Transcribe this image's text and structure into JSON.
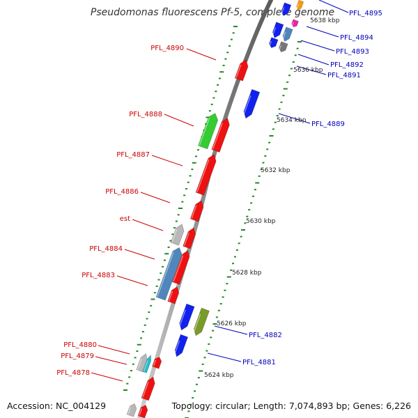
{
  "title": "Pseudomonas fluorescens Pf-5, complete genome",
  "accession": "Accession: NC_004129",
  "summary": "Topology: circular; Length: 7,074,893 bp; Genes: 6,226",
  "colors": {
    "red": "#ee1111",
    "blue": "#1122ee",
    "green": "#33cc33",
    "olive": "#7a9a2a",
    "steel": "#4f86bc",
    "gray": "#b8b8b8",
    "darkgray": "#777777",
    "cyan": "#22bbcc",
    "magenta": "#ee22aa",
    "orange": "#ff9900",
    "label_red": "#cc0000",
    "label_blue": "#0000bb",
    "tick": "#228822",
    "backbone": "#8a8a8a"
  },
  "scale_labels": [
    {
      "text": "5624 kbp"
    },
    {
      "text": "5626 kbp"
    },
    {
      "text": "5628 kbp"
    },
    {
      "text": "5630 kbp"
    },
    {
      "text": "5632 kbp"
    },
    {
      "text": "5634 kbp"
    },
    {
      "text": "5636 kbp"
    },
    {
      "text": "5638 kbp"
    }
  ],
  "left_labels": [
    {
      "text": "PFL_4890"
    },
    {
      "text": "PFL_4888"
    },
    {
      "text": "PFL_4887"
    },
    {
      "text": "PFL_4886"
    },
    {
      "text": "est"
    },
    {
      "text": "PFL_4884"
    },
    {
      "text": "PFL_4883"
    },
    {
      "text": "PFL_4880"
    },
    {
      "text": "PFL_4879"
    },
    {
      "text": "PFL_4878"
    }
  ],
  "right_labels": [
    {
      "text": "PFL_4895"
    },
    {
      "text": "PFL_4894"
    },
    {
      "text": "PFL_4893"
    },
    {
      "text": "PFL_4892"
    },
    {
      "text": "PFL_4891"
    },
    {
      "text": "PFL_4889"
    },
    {
      "text": "PFL_4882"
    },
    {
      "text": "PFL_4881"
    }
  ]
}
